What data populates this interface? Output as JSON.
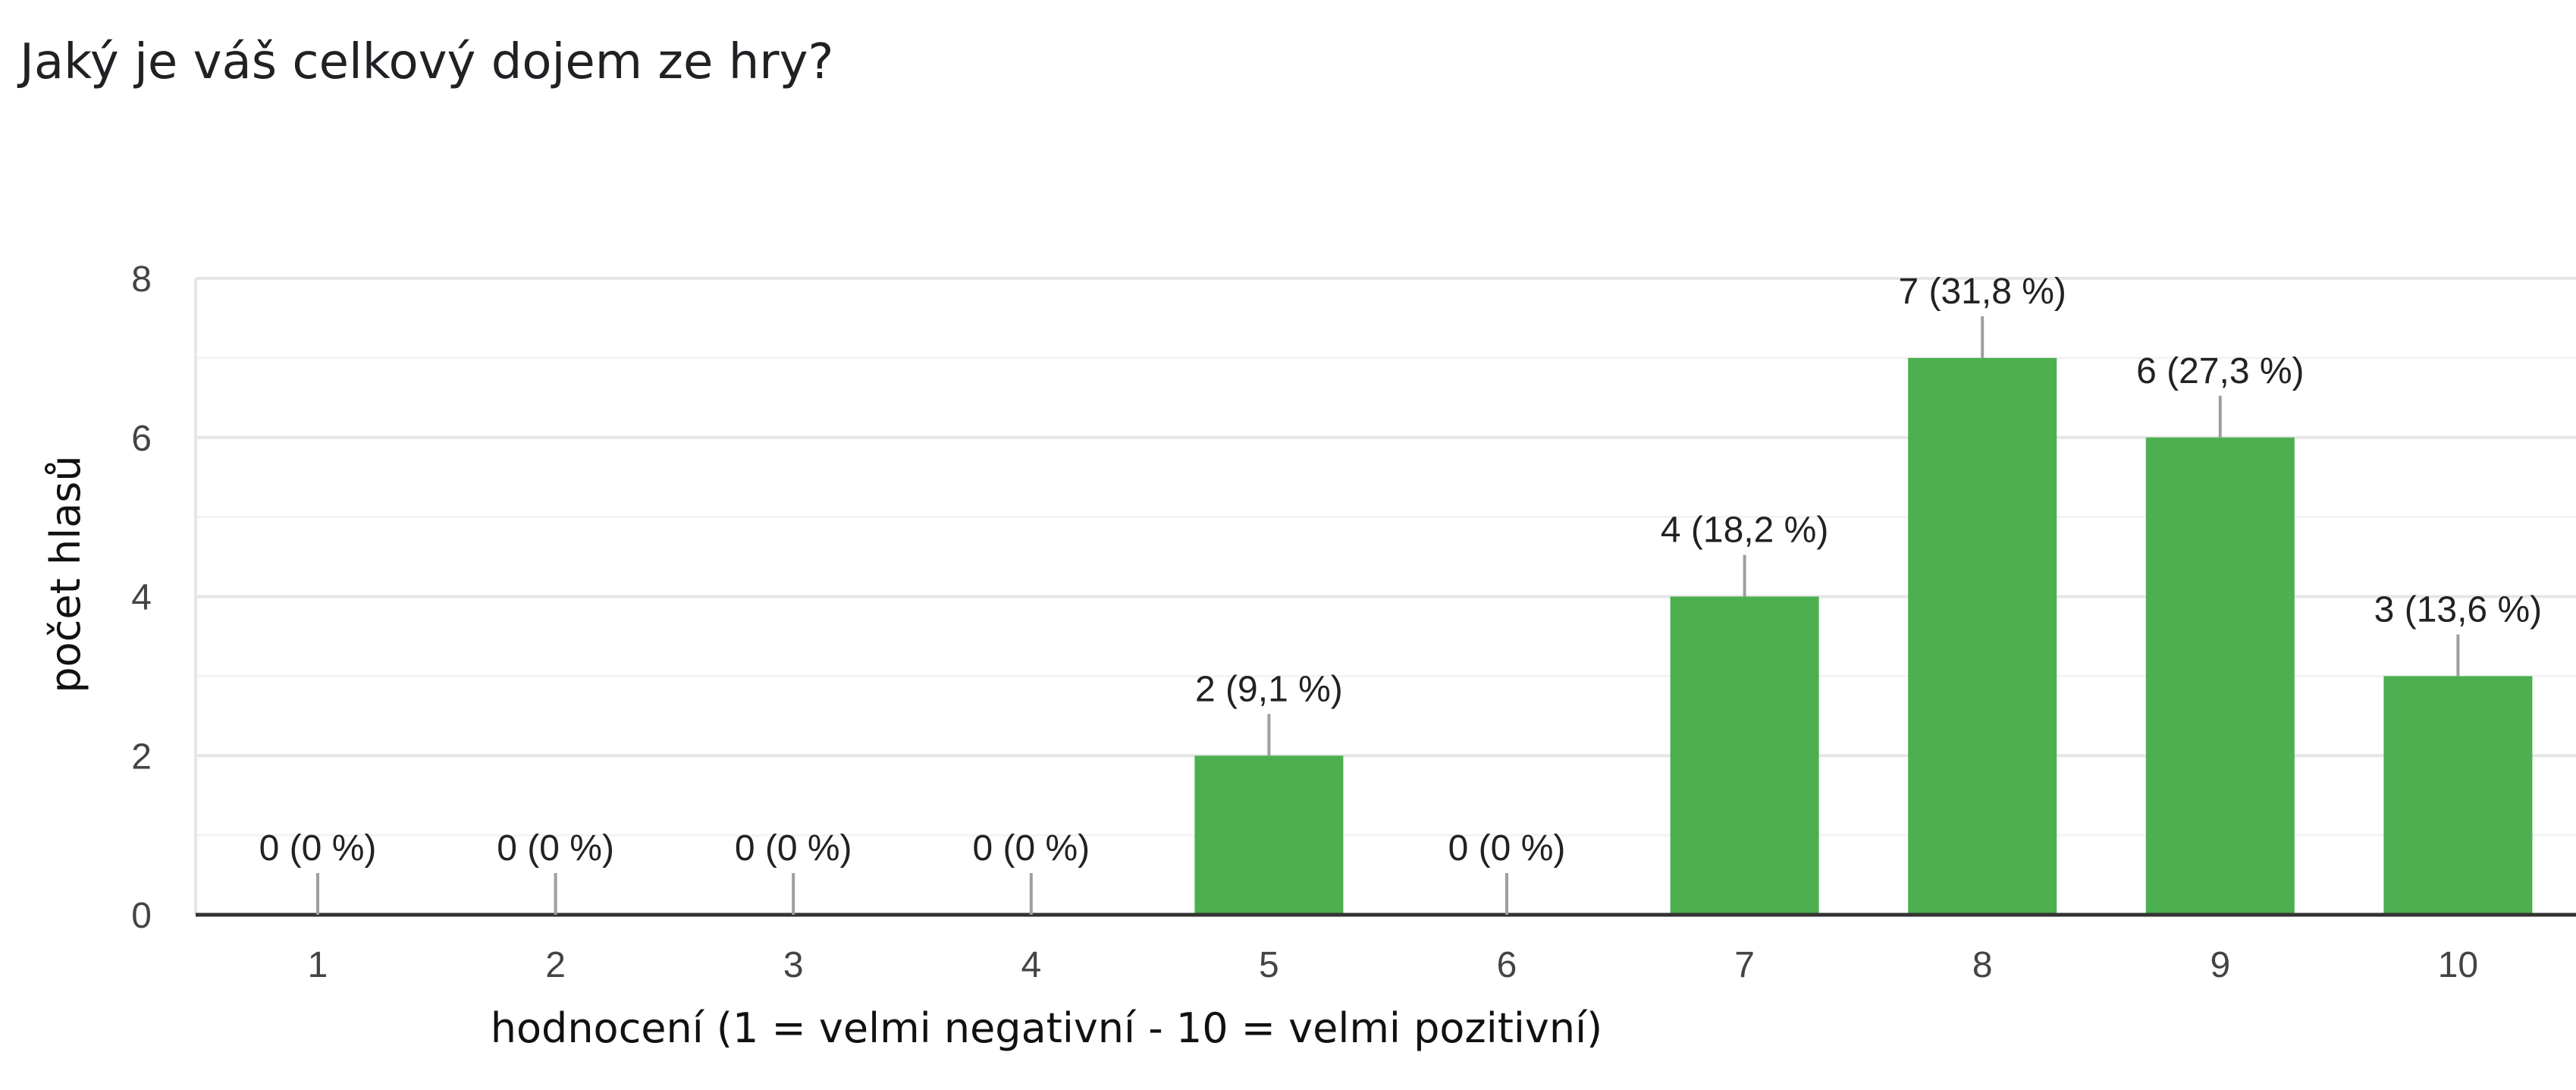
{
  "question": {
    "title": "Jaký je váš celkový dojem ze hry?"
  },
  "colors": {
    "bar": "#4caf50",
    "grid": "#e6e6e6",
    "minor_grid": "#f3f3f3",
    "axis": "#333333",
    "leader": "#9e9e9e"
  },
  "chart_data": {
    "type": "bar",
    "title": "",
    "xlabel": "hodnocení (1 = velmi negativní - 10 = velmi pozitivní)",
    "ylabel": "počet hlasů",
    "categories": [
      "1",
      "2",
      "3",
      "4",
      "5",
      "6",
      "7",
      "8",
      "9",
      "10"
    ],
    "values": [
      0,
      0,
      0,
      0,
      2,
      0,
      4,
      7,
      6,
      3
    ],
    "data_labels": [
      "0 (0 %)",
      "0 (0 %)",
      "0 (0 %)",
      "0 (0 %)",
      "2 (9,1 %)",
      "0 (0 %)",
      "4 (18,2 %)",
      "7 (31,8 %)",
      "6 (27,3 %)",
      "3 (13,6 %)"
    ],
    "ylim": [
      0,
      8
    ],
    "yticks": [
      "0",
      "2",
      "4",
      "6",
      "8"
    ],
    "grid": true,
    "legend": "none"
  }
}
